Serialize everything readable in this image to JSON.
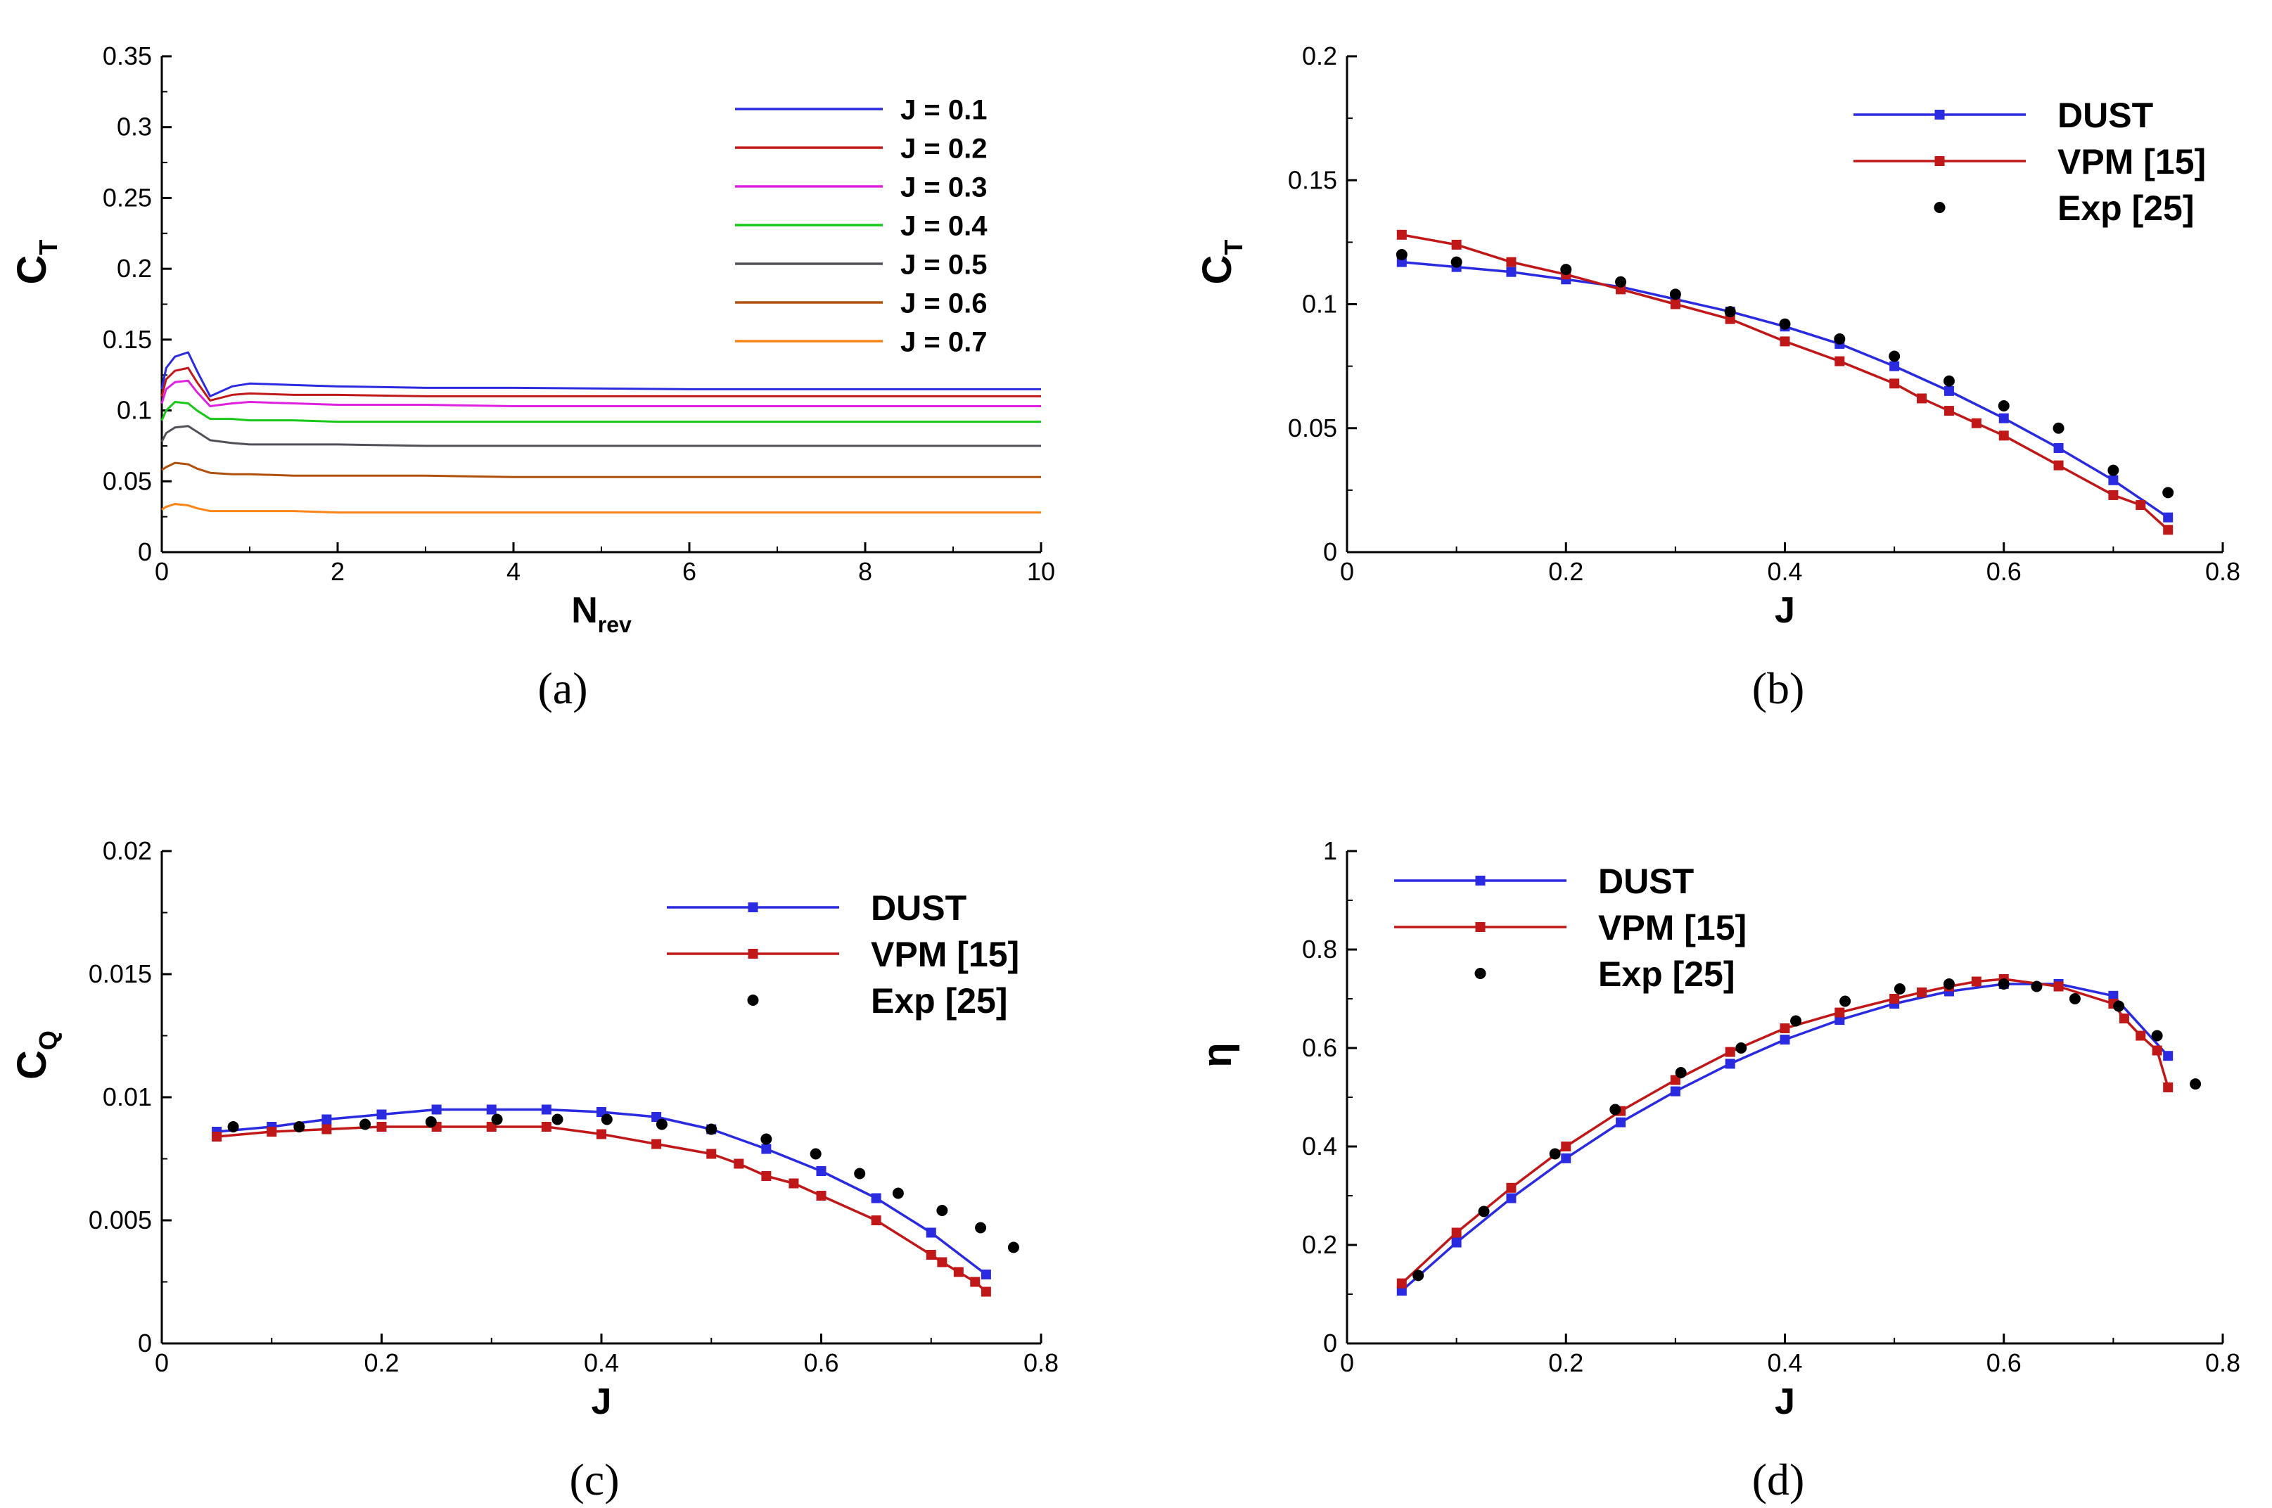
{
  "chart_data": [
    {
      "panel_label": "(a)",
      "type": "line",
      "xlabel": "N",
      "xlabel_sub": "rev",
      "ylabel": "C",
      "ylabel_sub": "T",
      "xlim": [
        0,
        10
      ],
      "ylim": [
        0,
        0.35
      ],
      "xticks": [
        "0",
        "2",
        "4",
        "6",
        "8",
        "10"
      ],
      "yticks": [
        "0",
        "0.05",
        "0.1",
        "0.15",
        "0.2",
        "0.25",
        "0.3",
        "0.35"
      ],
      "grid": false,
      "legend": "top-right",
      "series": [
        {
          "name": "J = 0.1",
          "color": "#2a2ae0",
          "x": [
            0,
            0.05,
            0.15,
            0.3,
            0.4,
            0.55,
            0.8,
            1.0,
            1.5,
            2,
            3,
            4,
            6,
            8,
            10
          ],
          "y": [
            0.115,
            0.13,
            0.138,
            0.141,
            0.128,
            0.11,
            0.117,
            0.119,
            0.118,
            0.117,
            0.116,
            0.116,
            0.115,
            0.115,
            0.115
          ]
        },
        {
          "name": "J = 0.2",
          "color": "#c01818",
          "x": [
            0,
            0.05,
            0.15,
            0.3,
            0.4,
            0.55,
            0.8,
            1.0,
            1.5,
            2,
            3,
            4,
            6,
            8,
            10
          ],
          "y": [
            0.11,
            0.122,
            0.128,
            0.13,
            0.12,
            0.107,
            0.111,
            0.112,
            0.111,
            0.111,
            0.11,
            0.11,
            0.11,
            0.11,
            0.11
          ]
        },
        {
          "name": "J = 0.3",
          "color": "#e020e0",
          "x": [
            0,
            0.05,
            0.15,
            0.3,
            0.4,
            0.55,
            0.8,
            1.0,
            1.5,
            2,
            3,
            4,
            6,
            8,
            10
          ],
          "y": [
            0.105,
            0.115,
            0.12,
            0.121,
            0.113,
            0.103,
            0.105,
            0.106,
            0.105,
            0.104,
            0.104,
            0.103,
            0.103,
            0.103,
            0.103
          ]
        },
        {
          "name": "J = 0.4",
          "color": "#18c818",
          "x": [
            0,
            0.05,
            0.15,
            0.3,
            0.4,
            0.55,
            0.8,
            1.0,
            1.5,
            2,
            3,
            4,
            6,
            8,
            10
          ],
          "y": [
            0.093,
            0.1,
            0.106,
            0.105,
            0.1,
            0.094,
            0.094,
            0.093,
            0.093,
            0.092,
            0.092,
            0.092,
            0.092,
            0.092,
            0.092
          ]
        },
        {
          "name": "J = 0.5",
          "color": "#505058",
          "x": [
            0,
            0.05,
            0.15,
            0.3,
            0.4,
            0.55,
            0.8,
            1.0,
            1.5,
            2,
            3,
            4,
            6,
            8,
            10
          ],
          "y": [
            0.078,
            0.084,
            0.088,
            0.089,
            0.085,
            0.079,
            0.077,
            0.076,
            0.076,
            0.076,
            0.075,
            0.075,
            0.075,
            0.075,
            0.075
          ]
        },
        {
          "name": "J = 0.6",
          "color": "#b0500c",
          "x": [
            0,
            0.05,
            0.15,
            0.3,
            0.4,
            0.55,
            0.8,
            1.0,
            1.5,
            2,
            3,
            4,
            6,
            8,
            10
          ],
          "y": [
            0.058,
            0.06,
            0.063,
            0.062,
            0.059,
            0.056,
            0.055,
            0.055,
            0.054,
            0.054,
            0.054,
            0.053,
            0.053,
            0.053,
            0.053
          ]
        },
        {
          "name": "J = 0.7",
          "color": "#ff8418",
          "x": [
            0,
            0.05,
            0.15,
            0.3,
            0.4,
            0.55,
            0.8,
            1.0,
            1.5,
            2,
            3,
            4,
            6,
            8,
            10
          ],
          "y": [
            0.03,
            0.032,
            0.034,
            0.033,
            0.031,
            0.029,
            0.029,
            0.029,
            0.029,
            0.028,
            0.028,
            0.028,
            0.028,
            0.028,
            0.028
          ]
        }
      ]
    },
    {
      "panel_label": "(b)",
      "type": "line",
      "xlabel": "J",
      "ylabel": "C",
      "ylabel_sub": "T",
      "xlim": [
        0,
        0.8
      ],
      "ylim": [
        0,
        0.2
      ],
      "xticks": [
        "0",
        "0.2",
        "0.4",
        "0.6",
        "0.8"
      ],
      "yticks": [
        "0",
        "0.05",
        "0.1",
        "0.15",
        "0.2"
      ],
      "grid": false,
      "legend": "top-right",
      "series": [
        {
          "name": "DUST",
          "color": "#2a2ae0",
          "style": "line-square",
          "x": [
            0.05,
            0.1,
            0.15,
            0.2,
            0.25,
            0.3,
            0.35,
            0.4,
            0.45,
            0.5,
            0.55,
            0.6,
            0.65,
            0.7,
            0.75
          ],
          "y": [
            0.117,
            0.115,
            0.113,
            0.11,
            0.107,
            0.102,
            0.097,
            0.091,
            0.084,
            0.075,
            0.065,
            0.054,
            0.042,
            0.029,
            0.014
          ]
        },
        {
          "name": "VPM [15]",
          "color": "#c01818",
          "style": "line-square",
          "x": [
            0.05,
            0.1,
            0.15,
            0.2,
            0.25,
            0.3,
            0.35,
            0.4,
            0.45,
            0.5,
            0.525,
            0.55,
            0.575,
            0.6,
            0.65,
            0.7,
            0.725,
            0.75
          ],
          "y": [
            0.128,
            0.124,
            0.117,
            0.112,
            0.106,
            0.1,
            0.094,
            0.085,
            0.077,
            0.068,
            0.062,
            0.057,
            0.052,
            0.047,
            0.035,
            0.023,
            0.019,
            0.009
          ]
        },
        {
          "name": "Exp [25]",
          "color": "#000000",
          "style": "dots",
          "x": [
            0.05,
            0.1,
            0.2,
            0.25,
            0.3,
            0.35,
            0.4,
            0.45,
            0.5,
            0.55,
            0.6,
            0.65,
            0.7,
            0.75
          ],
          "y": [
            0.12,
            0.117,
            0.114,
            0.109,
            0.104,
            0.097,
            0.092,
            0.086,
            0.079,
            0.069,
            0.059,
            0.05,
            0.033,
            0.024
          ]
        }
      ]
    },
    {
      "panel_label": "(c)",
      "type": "line",
      "xlabel": "J",
      "ylabel": "C",
      "ylabel_sub": "Q",
      "xlim": [
        0,
        0.8
      ],
      "ylim": [
        0,
        0.02
      ],
      "xticks": [
        "0",
        "0.2",
        "0.4",
        "0.6",
        "0.8"
      ],
      "yticks": [
        "0",
        "0.005",
        "0.01",
        "0.015",
        "0.02"
      ],
      "grid": false,
      "legend": "top-right",
      "series": [
        {
          "name": "DUST",
          "color": "#2a2ae0",
          "style": "line-square",
          "x": [
            0.05,
            0.1,
            0.15,
            0.2,
            0.25,
            0.3,
            0.35,
            0.4,
            0.45,
            0.5,
            0.55,
            0.6,
            0.65,
            0.7,
            0.75
          ],
          "y": [
            0.0086,
            0.0088,
            0.0091,
            0.0093,
            0.0095,
            0.0095,
            0.0095,
            0.0094,
            0.0092,
            0.0087,
            0.0079,
            0.007,
            0.0059,
            0.0045,
            0.0028
          ]
        },
        {
          "name": "VPM [15]",
          "color": "#c01818",
          "style": "line-square",
          "x": [
            0.05,
            0.1,
            0.15,
            0.2,
            0.25,
            0.3,
            0.35,
            0.4,
            0.45,
            0.5,
            0.525,
            0.55,
            0.575,
            0.6,
            0.65,
            0.7,
            0.71,
            0.725,
            0.74,
            0.75
          ],
          "y": [
            0.0084,
            0.0086,
            0.0087,
            0.0088,
            0.0088,
            0.0088,
            0.0088,
            0.0085,
            0.0081,
            0.0077,
            0.0073,
            0.0068,
            0.0065,
            0.006,
            0.005,
            0.0036,
            0.0033,
            0.0029,
            0.0025,
            0.0021
          ]
        },
        {
          "name": "Exp [25]",
          "color": "#000000",
          "style": "dots",
          "x": [
            0.065,
            0.125,
            0.185,
            0.245,
            0.305,
            0.36,
            0.405,
            0.455,
            0.5,
            0.55,
            0.595,
            0.635,
            0.67,
            0.71,
            0.745,
            0.775
          ],
          "y": [
            0.0088,
            0.0088,
            0.0089,
            0.009,
            0.0091,
            0.0091,
            0.0091,
            0.0089,
            0.0087,
            0.0083,
            0.0077,
            0.0069,
            0.0061,
            0.0054,
            0.0047,
            0.0039
          ]
        }
      ]
    },
    {
      "panel_label": "(d)",
      "type": "line",
      "xlabel": "J",
      "ylabel": "η",
      "xlim": [
        0,
        0.8
      ],
      "ylim": [
        0,
        1
      ],
      "xticks": [
        "0",
        "0.2",
        "0.4",
        "0.6",
        "0.8"
      ],
      "yticks": [
        "0",
        "0.2",
        "0.4",
        "0.6",
        "0.8",
        "1"
      ],
      "grid": false,
      "legend": "top-left",
      "series": [
        {
          "name": "DUST",
          "color": "#2a2ae0",
          "style": "line-square",
          "x": [
            0.05,
            0.1,
            0.15,
            0.2,
            0.25,
            0.3,
            0.35,
            0.4,
            0.45,
            0.5,
            0.55,
            0.6,
            0.65,
            0.7,
            0.75
          ],
          "y": [
            0.107,
            0.205,
            0.295,
            0.376,
            0.449,
            0.512,
            0.568,
            0.617,
            0.657,
            0.69,
            0.715,
            0.73,
            0.73,
            0.706,
            0.584
          ]
        },
        {
          "name": "VPM [15]",
          "color": "#c01818",
          "style": "line-square",
          "x": [
            0.05,
            0.1,
            0.15,
            0.2,
            0.25,
            0.3,
            0.35,
            0.4,
            0.45,
            0.5,
            0.525,
            0.55,
            0.575,
            0.6,
            0.65,
            0.7,
            0.71,
            0.725,
            0.74,
            0.75
          ],
          "y": [
            0.122,
            0.225,
            0.316,
            0.4,
            0.472,
            0.535,
            0.592,
            0.64,
            0.672,
            0.7,
            0.713,
            0.725,
            0.735,
            0.74,
            0.725,
            0.69,
            0.66,
            0.625,
            0.595,
            0.52
          ]
        },
        {
          "name": "Exp [25]",
          "color": "#000000",
          "style": "dots",
          "x": [
            0.065,
            0.125,
            0.19,
            0.245,
            0.305,
            0.36,
            0.41,
            0.455,
            0.505,
            0.55,
            0.6,
            0.63,
            0.665,
            0.705,
            0.74,
            0.775
          ],
          "y": [
            0.138,
            0.268,
            0.385,
            0.475,
            0.55,
            0.6,
            0.655,
            0.695,
            0.72,
            0.73,
            0.73,
            0.725,
            0.7,
            0.685,
            0.625,
            0.527
          ]
        }
      ]
    }
  ]
}
